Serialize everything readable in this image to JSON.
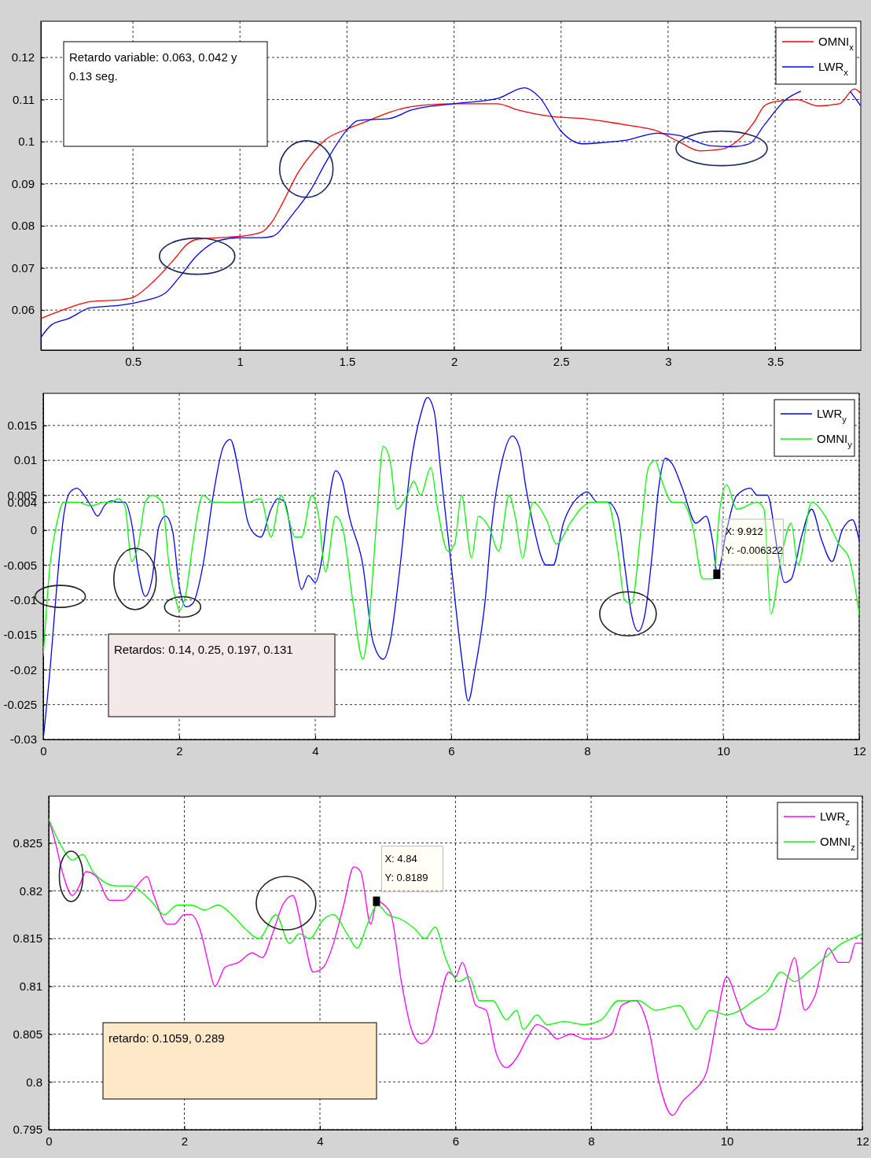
{
  "chart_data": [
    {
      "type": "line",
      "xlim": [
        0.07,
        3.9
      ],
      "ylim": [
        0.0505,
        0.1286
      ],
      "xticks": [
        0.5,
        1,
        1.5,
        2,
        2.5,
        3,
        3.5
      ],
      "yticks": [
        0.06,
        0.07,
        0.08,
        0.09,
        0.1,
        0.11,
        0.12
      ],
      "grid": true,
      "legend": "top right",
      "line_style": "solid",
      "marker": "none",
      "annotations": [
        "Retardo variable: 0.063, 0.042 y 0.13 seg."
      ],
      "series": [
        {
          "name": "OMNI$_{x}$",
          "color": "#ff0000",
          "x": [
            0.07,
            0.2,
            0.3,
            0.45,
            0.5,
            0.6,
            0.7,
            0.75,
            0.8,
            0.9,
            1.0,
            1.1,
            1.15,
            1.2,
            1.27,
            1.3,
            1.4,
            1.5,
            1.6,
            1.7,
            1.8,
            2.0,
            2.2,
            2.3,
            2.45,
            2.6,
            2.8,
            2.95,
            3.05,
            3.15,
            3.25,
            3.32,
            3.4,
            3.45,
            3.5,
            3.6,
            3.7,
            3.8,
            3.87,
            3.9
          ],
          "values": [
            0.058,
            0.0605,
            0.062,
            0.0625,
            0.063,
            0.067,
            0.0725,
            0.0755,
            0.0768,
            0.0772,
            0.0775,
            0.0785,
            0.081,
            0.0855,
            0.0925,
            0.0948,
            0.1005,
            0.103,
            0.105,
            0.107,
            0.1083,
            0.109,
            0.109,
            0.1075,
            0.106,
            0.1055,
            0.104,
            0.1025,
            0.1,
            0.0978,
            0.0982,
            0.1,
            0.1045,
            0.1085,
            0.1095,
            0.11,
            0.1085,
            0.109,
            0.1125,
            0.1115
          ]
        },
        {
          "name": "LWR$_{x}$",
          "color": "#0000ff",
          "x": [
            0.07,
            0.12,
            0.2,
            0.3,
            0.45,
            0.55,
            0.65,
            0.72,
            0.8,
            0.9,
            1.0,
            1.1,
            1.15,
            1.25,
            1.33,
            1.4,
            1.5,
            1.55,
            1.7,
            1.8,
            2.0,
            2.2,
            2.33,
            2.4,
            2.5,
            2.6,
            2.7,
            2.8,
            2.95,
            3.05,
            3.2,
            3.3,
            3.38,
            3.45,
            3.55,
            3.62,
            3.7,
            3.8,
            3.85,
            3.9
          ],
          "values": [
            0.0535,
            0.0565,
            0.058,
            0.0605,
            0.0612,
            0.0622,
            0.064,
            0.068,
            0.073,
            0.0765,
            0.0772,
            0.0772,
            0.0775,
            0.083,
            0.0885,
            0.095,
            0.1028,
            0.105,
            0.1055,
            0.1075,
            0.109,
            0.1102,
            0.1128,
            0.1105,
            0.1025,
            0.0995,
            0.0998,
            0.1003,
            0.102,
            0.1015,
            0.099,
            0.0988,
            0.0995,
            0.104,
            0.11,
            0.112,
            null,
            null,
            0.112,
            0.1085
          ]
        }
      ]
    },
    {
      "type": "line",
      "xlim": [
        0,
        12
      ],
      "ylim": [
        -0.03,
        0.0196
      ],
      "xticks": [
        0,
        2,
        4,
        6,
        8,
        10,
        12
      ],
      "yticks": [
        -0.03,
        -0.025,
        -0.02,
        -0.015,
        -0.01,
        -0.005,
        0,
        0.004,
        0.005,
        0.01,
        0.015
      ],
      "grid": true,
      "legend": "top right",
      "line_style": "solid",
      "marker": "none",
      "annotations": [
        "Retardos: 0.14, 0.25, 0.197, 0.131",
        {
          "text": "X: 9.912\nY: -0.006322",
          "x": 9.912,
          "y": -0.006322
        }
      ],
      "series": [
        {
          "name": "LWR$_{y}$",
          "color": "#0000ff",
          "x": [
            0,
            0.1,
            0.2,
            0.3,
            0.4,
            0.5,
            0.6,
            0.7,
            0.8,
            0.9,
            1.0,
            1.1,
            1.2,
            1.3,
            1.4,
            1.5,
            1.6,
            1.7,
            1.8,
            1.9,
            2.0,
            2.1,
            2.2,
            2.35,
            2.5,
            2.65,
            2.75,
            2.9,
            3.0,
            3.1,
            3.2,
            3.35,
            3.45,
            3.55,
            3.7,
            3.8,
            3.9,
            4.0,
            4.1,
            4.2,
            4.3,
            4.4,
            4.5,
            4.7,
            4.85,
            5.0,
            5.1,
            5.25,
            5.4,
            5.55,
            5.65,
            5.75,
            5.85,
            6.0,
            6.15,
            6.25,
            6.35,
            6.5,
            6.6,
            6.75,
            6.9,
            7.0,
            7.1,
            7.2,
            7.4,
            7.5,
            7.65,
            7.8,
            7.9,
            8.0,
            8.15,
            8.3,
            8.45,
            8.55,
            8.65,
            8.75,
            8.85,
            8.95,
            9.05,
            9.15,
            9.25,
            9.4,
            9.6,
            9.75,
            9.85,
            9.912,
            10.05,
            10.2,
            10.4,
            10.5,
            10.65,
            10.8,
            10.9,
            11.0,
            11.15,
            11.3,
            11.45,
            11.6,
            11.75,
            11.9,
            12.0
          ],
          "values": [
            -0.03,
            -0.02,
            -0.008,
            0.002,
            0.0055,
            0.006,
            0.005,
            0.0035,
            0.002,
            0.0035,
            0.0042,
            0.004,
            0.004,
            0.001,
            -0.006,
            -0.0095,
            -0.007,
            0.0005,
            0.002,
            0,
            -0.008,
            -0.011,
            -0.0105,
            -0.005,
            0.005,
            0.012,
            0.013,
            0.007,
            0.0015,
            -0.0005,
            -0.001,
            0.003,
            0.0045,
            0.004,
            -0.004,
            -0.0085,
            -0.0065,
            -0.0075,
            -0.004,
            0.004,
            0.0085,
            0.007,
            0.002,
            -0.005,
            -0.016,
            -0.0185,
            -0.016,
            -0.005,
            0.009,
            0.0165,
            0.019,
            0.017,
            0.008,
            -0.005,
            -0.018,
            -0.0245,
            -0.02,
            -0.01,
            0.001,
            0.01,
            0.0135,
            0.012,
            0.006,
            0.001,
            -0.005,
            -0.005,
            0.001,
            0.004,
            0.005,
            0.0055,
            0.004,
            0.004,
            0.002,
            -0.005,
            -0.012,
            -0.0145,
            -0.012,
            -0.004,
            0.006,
            0.0103,
            0.0095,
            0.006,
            0.001,
            0.002,
            -0.002,
            -0.0063,
            0,
            0.005,
            0.006,
            0.005,
            0.005,
            -0.003,
            -0.0075,
            -0.007,
            -0.001,
            0.003,
            -0.0015,
            -0.0045,
            0,
            0.0015,
            -0.0015
          ]
        },
        {
          "name": "OMNI$_{y}$",
          "color": "#00ff00",
          "x": [
            0,
            0.1,
            0.2,
            0.3,
            0.5,
            0.7,
            0.9,
            1.0,
            1.1,
            1.2,
            1.3,
            1.4,
            1.5,
            1.6,
            1.75,
            1.85,
            1.95,
            2.0,
            2.1,
            2.2,
            2.35,
            2.5,
            2.7,
            3.0,
            3.2,
            3.35,
            3.5,
            3.6,
            3.7,
            3.8,
            3.95,
            4.05,
            4.15,
            4.3,
            4.4,
            4.55,
            4.7,
            4.8,
            4.9,
            5.0,
            5.1,
            5.2,
            5.35,
            5.45,
            5.55,
            5.7,
            5.8,
            5.95,
            6.05,
            6.15,
            6.3,
            6.4,
            6.55,
            6.7,
            6.85,
            6.95,
            7.05,
            7.2,
            7.4,
            7.55,
            7.75,
            7.9,
            8.05,
            8.3,
            8.45,
            8.55,
            8.65,
            8.8,
            8.9,
            9.0,
            9.1,
            9.25,
            9.4,
            9.55,
            9.7,
            9.85,
            9.95,
            10.05,
            10.2,
            10.5,
            10.6,
            10.7,
            10.85,
            11.0,
            11.1,
            11.3,
            11.5,
            11.7,
            11.85,
            12.0
          ],
          "values": [
            -0.018,
            -0.005,
            0.001,
            0.004,
            0.004,
            0.0035,
            0.004,
            0.004,
            0.0045,
            0.0035,
            -0.0045,
            -0.002,
            0.004,
            0.005,
            0.004,
            -0.005,
            -0.01,
            -0.0115,
            -0.009,
            -0.002,
            0.005,
            0.004,
            0.004,
            0.004,
            0.0045,
            -0.001,
            0.005,
            0.002,
            -0.001,
            -0.001,
            0.005,
            0.002,
            -0.006,
            0.002,
            0.0005,
            -0.01,
            -0.0185,
            -0.012,
            0.001,
            0.012,
            0.01,
            0.003,
            0.005,
            0.007,
            0.005,
            0.009,
            0.003,
            -0.003,
            -0.002,
            0.005,
            -0.004,
            0.002,
            0.0005,
            -0.003,
            0.005,
            0.0015,
            -0.004,
            0.004,
            0.0015,
            -0.002,
            0.001,
            0.003,
            0.004,
            0.004,
            -0.003,
            -0.01,
            -0.0105,
            0.001,
            0.009,
            0.01,
            0.007,
            0.004,
            0.004,
            0.0005,
            -0.007,
            -0.007,
            0.003,
            0.0065,
            0.003,
            0.004,
            0.003,
            -0.012,
            -0.004,
            0.001,
            -0.005,
            0.004,
            0.002,
            -0.002,
            -0.004,
            -0.012
          ]
        }
      ]
    },
    {
      "type": "line",
      "xlim": [
        0,
        12
      ],
      "ylim": [
        0.795,
        0.8299
      ],
      "xticks": [
        0,
        2,
        4,
        6,
        8,
        10,
        12
      ],
      "yticks": [
        0.795,
        0.8,
        0.805,
        0.81,
        0.815,
        0.82,
        0.825
      ],
      "grid": true,
      "legend": "top right",
      "line_style": "solid",
      "marker": "none",
      "annotations": [
        "retardo: 0.1059, 0.289",
        {
          "text": "X: 4.84\nY: 0.8189",
          "x": 4.84,
          "y": 0.8189
        }
      ],
      "series": [
        {
          "name": "LWR$_{z}$",
          "color": "#ff00ff",
          "x": [
            0,
            0.1,
            0.2,
            0.35,
            0.45,
            0.55,
            0.7,
            0.9,
            1.1,
            1.3,
            1.45,
            1.55,
            1.75,
            1.85,
            2.0,
            2.1,
            2.25,
            2.35,
            2.45,
            2.6,
            2.8,
            3.0,
            3.15,
            3.3,
            3.45,
            3.6,
            3.75,
            3.9,
            4.05,
            4.2,
            4.35,
            4.5,
            4.6,
            4.75,
            4.84,
            4.95,
            5.05,
            5.2,
            5.35,
            5.5,
            5.65,
            5.75,
            5.9,
            6.0,
            6.1,
            6.2,
            6.3,
            6.45,
            6.6,
            6.75,
            6.9,
            7.05,
            7.2,
            7.35,
            7.5,
            7.7,
            7.9,
            8.1,
            8.3,
            8.45,
            8.65,
            8.85,
            9.0,
            9.2,
            9.35,
            9.5,
            9.7,
            9.85,
            10.0,
            10.15,
            10.3,
            10.5,
            10.7,
            10.9,
            11.0,
            11.15,
            11.3,
            11.5,
            11.65,
            11.8,
            11.9,
            12.0
          ],
          "values": [
            0.8275,
            0.825,
            0.822,
            0.8195,
            0.8205,
            0.822,
            0.8215,
            0.819,
            0.819,
            0.8205,
            0.8215,
            0.8195,
            0.8165,
            0.8165,
            0.8175,
            0.8175,
            0.8155,
            0.8125,
            0.81,
            0.812,
            0.8125,
            0.8135,
            0.813,
            0.8155,
            0.8185,
            0.8195,
            0.8155,
            0.8115,
            0.812,
            0.8145,
            0.8185,
            0.8225,
            0.822,
            0.8165,
            0.8189,
            0.8185,
            0.8175,
            0.8105,
            0.8055,
            0.804,
            0.805,
            0.808,
            0.8115,
            0.811,
            0.8125,
            0.8105,
            0.808,
            0.8075,
            0.803,
            0.8015,
            0.8025,
            0.8045,
            0.806,
            0.8055,
            0.8045,
            0.805,
            0.8045,
            0.8045,
            0.805,
            0.808,
            0.8085,
            0.8055,
            0.8,
            0.7965,
            0.798,
            0.799,
            0.801,
            0.8065,
            0.811,
            0.8085,
            0.806,
            0.8055,
            0.8055,
            0.811,
            0.813,
            0.8075,
            0.809,
            0.814,
            0.8125,
            0.8125,
            0.8145,
            0.8145
          ]
        },
        {
          "name": "OMNI$_{z}$",
          "color": "#00ff00",
          "x": [
            0,
            0.2,
            0.35,
            0.5,
            0.65,
            0.8,
            1.0,
            1.2,
            1.5,
            1.7,
            1.9,
            2.1,
            2.3,
            2.5,
            2.7,
            2.9,
            3.1,
            3.35,
            3.55,
            3.7,
            3.85,
            4.05,
            4.2,
            4.4,
            4.55,
            4.7,
            4.85,
            5.0,
            5.2,
            5.4,
            5.55,
            5.7,
            5.85,
            6.05,
            6.2,
            6.35,
            6.55,
            6.75,
            6.9,
            7.0,
            7.2,
            7.35,
            7.6,
            7.9,
            8.15,
            8.4,
            8.7,
            8.95,
            9.3,
            9.55,
            9.75,
            10.0,
            10.2,
            10.4,
            10.6,
            10.8,
            11.0,
            11.2,
            11.45,
            11.7,
            11.85,
            12.0
          ],
          "values": [
            0.8275,
            0.8245,
            0.8232,
            0.8238,
            0.822,
            0.821,
            0.8205,
            0.8205,
            0.819,
            0.8175,
            0.8185,
            0.8185,
            0.818,
            0.8185,
            0.8175,
            0.816,
            0.815,
            0.8175,
            0.8145,
            0.8155,
            0.815,
            0.817,
            0.8175,
            0.8155,
            0.814,
            0.8165,
            0.8185,
            0.8175,
            0.817,
            0.816,
            0.815,
            0.8162,
            0.813,
            0.8105,
            0.811,
            0.8085,
            0.8085,
            0.8065,
            0.8075,
            0.8055,
            0.807,
            0.806,
            0.8063,
            0.806,
            0.8065,
            0.8085,
            0.8085,
            0.8075,
            0.808,
            0.8055,
            0.8075,
            0.807,
            0.8075,
            0.8085,
            0.8095,
            0.8115,
            0.8105,
            0.8115,
            0.813,
            0.8145,
            0.815,
            0.8155
          ]
        }
      ]
    }
  ]
}
